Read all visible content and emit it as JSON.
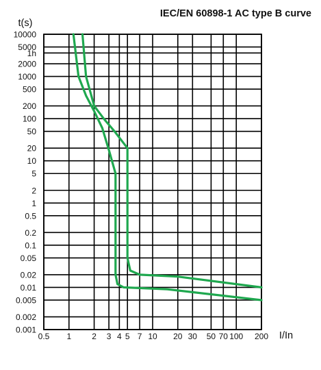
{
  "chart_data": {
    "type": "line",
    "title": "IEC/EN 60898-1 AC type B curve",
    "xlabel": "I/In",
    "ylabel": "t(s)",
    "x_scale": "log",
    "y_scale": "log",
    "xlim": [
      0.5,
      200
    ],
    "ylim": [
      0.001,
      10000
    ],
    "grid": true,
    "x_ticks": [
      {
        "value": 0.5,
        "label": "0.5"
      },
      {
        "value": 1,
        "label": "1"
      },
      {
        "value": 2,
        "label": "2"
      },
      {
        "value": 3,
        "label": "3"
      },
      {
        "value": 4,
        "label": "4"
      },
      {
        "value": 5,
        "label": "5"
      },
      {
        "value": 7,
        "label": "7"
      },
      {
        "value": 10,
        "label": "10"
      },
      {
        "value": 20,
        "label": "20"
      },
      {
        "value": 30,
        "label": "30"
      },
      {
        "value": 50,
        "label": "50"
      },
      {
        "value": 70,
        "label": "70"
      },
      {
        "value": 100,
        "label": "100"
      },
      {
        "value": 200,
        "label": "200"
      }
    ],
    "y_ticks": [
      {
        "value": 10000,
        "label": "10000"
      },
      {
        "value": 5000,
        "label": "5000"
      },
      {
        "value": 3600,
        "label": "1h"
      },
      {
        "value": 2000,
        "label": "2000"
      },
      {
        "value": 1000,
        "label": "1000"
      },
      {
        "value": 500,
        "label": "500"
      },
      {
        "value": 200,
        "label": "200"
      },
      {
        "value": 100,
        "label": "100"
      },
      {
        "value": 50,
        "label": "50"
      },
      {
        "value": 20,
        "label": "20"
      },
      {
        "value": 10,
        "label": "10"
      },
      {
        "value": 5,
        "label": "5"
      },
      {
        "value": 2,
        "label": "2"
      },
      {
        "value": 1,
        "label": "1"
      },
      {
        "value": 0.5,
        "label": "0.5"
      },
      {
        "value": 0.2,
        "label": "0.2"
      },
      {
        "value": 0.1,
        "label": "0.1"
      },
      {
        "value": 0.05,
        "label": "0.05"
      },
      {
        "value": 0.02,
        "label": "0.02"
      },
      {
        "value": 0.01,
        "label": "0.01"
      },
      {
        "value": 0.005,
        "label": "0.005"
      },
      {
        "value": 0.002,
        "label": "0.002"
      },
      {
        "value": 0.001,
        "label": "0.001"
      }
    ],
    "series": [
      {
        "color": "#1fa84f",
        "points": [
          [
            1.13,
            10000
          ],
          [
            1.3,
            1000
          ],
          [
            1.6,
            350
          ],
          [
            2.0,
            150
          ],
          [
            2.5,
            60
          ],
          [
            3.0,
            18
          ],
          [
            3.6,
            5
          ],
          [
            3.6,
            0.02
          ],
          [
            3.8,
            0.012
          ],
          [
            4.5,
            0.01
          ],
          [
            15,
            0.009
          ],
          [
            200,
            0.005
          ]
        ]
      },
      {
        "color": "#1fa84f",
        "points": [
          [
            1.45,
            10000
          ],
          [
            1.6,
            1000
          ],
          [
            2.0,
            200
          ],
          [
            2.6,
            100
          ],
          [
            3.5,
            50
          ],
          [
            5.0,
            20
          ],
          [
            5.0,
            0.05
          ],
          [
            5.4,
            0.025
          ],
          [
            7,
            0.02
          ],
          [
            20,
            0.018
          ],
          [
            200,
            0.01
          ]
        ]
      }
    ]
  }
}
